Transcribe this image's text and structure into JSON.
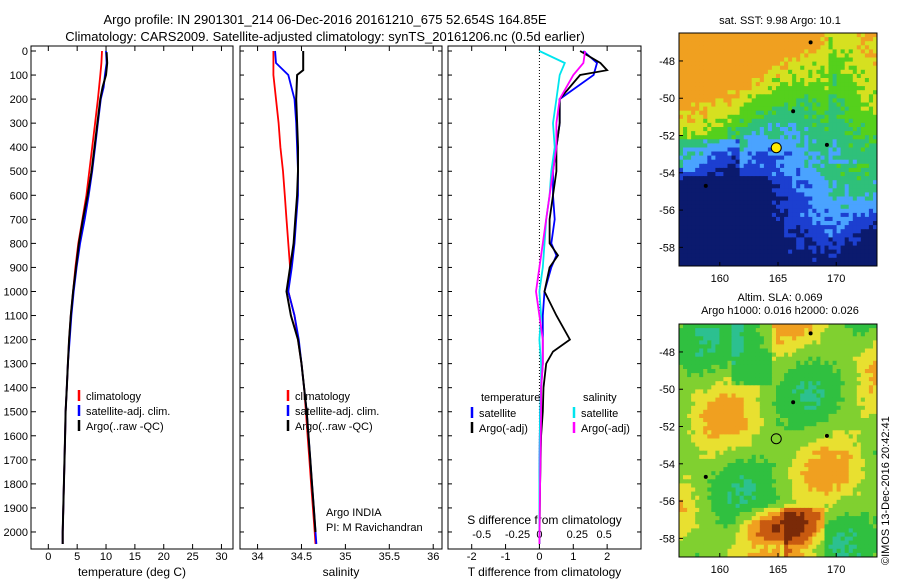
{
  "title": {
    "line1": "Argo profile: IN 2901301_214 06-Dec-2016 20161210_675 52.654S 164.85E",
    "line2": "Climatology: CARS2009. Satellite-adjusted climatology: synTS_20161206.nc (0.5d earlier)"
  },
  "credit": "©IMOS 13-Dec-2016 20:42:41",
  "colors": {
    "climatology": "#ff0000",
    "satellite": "#0000ff",
    "argo": "#000000",
    "salinity_satellite": "#00e5ee",
    "salinity_argo": "#ff00ff"
  },
  "chart_data": [
    {
      "type": "line",
      "xlabel": "temperature (deg C)",
      "ylabel": "",
      "xlim": [
        -3,
        32
      ],
      "ylim": [
        2100,
        0
      ],
      "xticks": [
        0,
        5,
        10,
        15,
        20,
        25,
        30
      ],
      "yticks": [
        0,
        100,
        200,
        300,
        400,
        500,
        600,
        700,
        800,
        900,
        1000,
        1100,
        1200,
        1300,
        1400,
        1500,
        1600,
        1700,
        1800,
        1900,
        2000
      ],
      "legend": [
        "climatology",
        "satellite-adj. clim.",
        "Argo(..raw -QC)"
      ],
      "series": [
        {
          "name": "climatology",
          "depth": [
            0,
            50,
            100,
            200,
            300,
            400,
            500,
            600,
            700,
            800,
            900,
            1000,
            1100,
            1200,
            1300,
            1400,
            1500,
            1600,
            1700,
            1800,
            1900,
            2000,
            2050
          ],
          "values": [
            9.3,
            9.2,
            9.0,
            8.6,
            8.1,
            7.6,
            7.1,
            6.6,
            5.9,
            5.2,
            4.7,
            4.3,
            3.9,
            3.6,
            3.4,
            3.2,
            3.0,
            2.9,
            2.8,
            2.7,
            2.6,
            2.5,
            2.5
          ]
        },
        {
          "name": "satellite-adj. clim.",
          "depth": [
            0,
            50,
            100,
            150,
            200,
            300,
            400,
            500,
            600,
            700,
            800,
            900,
            1000,
            1100,
            1200,
            1300,
            1400,
            1500,
            1600,
            1700,
            1800,
            1900,
            2000,
            2050
          ],
          "values": [
            10.0,
            10.1,
            9.8,
            9.6,
            9.1,
            8.6,
            8.1,
            7.6,
            7.0,
            6.3,
            5.5,
            4.9,
            4.4,
            4.0,
            3.7,
            3.4,
            3.2,
            3.0,
            2.9,
            2.8,
            2.7,
            2.6,
            2.5,
            2.5
          ]
        },
        {
          "name": "Argo(..raw -QC)",
          "depth": [
            5,
            50,
            100,
            150,
            200,
            300,
            400,
            500,
            600,
            700,
            800,
            900,
            1000,
            1100,
            1200,
            1300,
            1400,
            1500,
            1600,
            1700,
            1800,
            1900,
            2000,
            2050
          ],
          "values": [
            10.1,
            10.2,
            10.0,
            9.4,
            9.0,
            8.5,
            8.0,
            7.5,
            6.8,
            6.0,
            5.3,
            4.8,
            4.3,
            3.9,
            3.6,
            3.4,
            3.2,
            3.0,
            2.9,
            2.8,
            2.7,
            2.6,
            2.5,
            2.5
          ]
        }
      ]
    },
    {
      "type": "line",
      "xlabel": "salinity",
      "xlim": [
        33.8,
        36.1
      ],
      "ylim": [
        2100,
        0
      ],
      "xticks": [
        34,
        34.5,
        35,
        35.5,
        36
      ],
      "legend": [
        "climatology",
        "satellite-adj. clim.",
        "Argo(..raw -QC)"
      ],
      "annotation": [
        "Argo INDIA",
        "PI: M Ravichandran"
      ],
      "series": [
        {
          "name": "climatology",
          "depth": [
            0,
            100,
            200,
            300,
            400,
            500,
            600,
            700,
            800,
            900,
            1000,
            1100,
            1200,
            1300,
            1400,
            1500,
            1600,
            1700,
            1800,
            1900,
            2000,
            2050
          ],
          "values": [
            34.18,
            34.18,
            34.21,
            34.24,
            34.26,
            34.29,
            34.31,
            34.33,
            34.35,
            34.37,
            34.35,
            34.42,
            34.46,
            34.5,
            34.53,
            34.55,
            34.57,
            34.59,
            34.61,
            34.63,
            34.65,
            34.66
          ]
        },
        {
          "name": "satellite-adj. clim.",
          "depth": [
            0,
            50,
            100,
            200,
            300,
            400,
            500,
            600,
            700,
            800,
            900,
            1000,
            1100,
            1200,
            1300,
            1400,
            1500,
            1600,
            1700,
            1800,
            1900,
            2000,
            2050
          ],
          "values": [
            34.2,
            34.21,
            34.35,
            34.42,
            34.44,
            34.45,
            34.46,
            34.46,
            34.44,
            34.42,
            34.39,
            34.35,
            34.42,
            34.47,
            34.5,
            34.53,
            34.56,
            34.58,
            34.6,
            34.62,
            34.64,
            34.66,
            34.67
          ]
        },
        {
          "name": "Argo(..raw -QC)",
          "depth": [
            0,
            80,
            100,
            200,
            300,
            400,
            500,
            600,
            700,
            800,
            900,
            1000,
            1100,
            1200,
            1300,
            1400,
            1500,
            1600,
            1700,
            1800,
            1900,
            2000
          ],
          "values": [
            34.52,
            34.52,
            34.45,
            34.44,
            34.45,
            34.46,
            34.46,
            34.45,
            34.43,
            34.41,
            34.37,
            34.33,
            34.38,
            34.46,
            34.5,
            34.53,
            34.56,
            34.58,
            34.6,
            34.62,
            34.64,
            34.66
          ]
        }
      ]
    },
    {
      "type": "line",
      "xlabel": "T difference from climatology",
      "xlabel2": "S difference from climatology",
      "xlim": [
        -2.7,
        3.0
      ],
      "ylim": [
        2100,
        0
      ],
      "xticks": [
        -2,
        -1,
        0,
        1,
        2
      ],
      "xticks2": [
        "-0.5",
        "-0.25",
        "0",
        "0.25",
        "0.5"
      ],
      "legend_headers": [
        "temperature",
        "salinity"
      ],
      "legend": [
        "satellite",
        "Argo(-adj)",
        "satellite",
        "Argo(-adj)"
      ],
      "series": [
        {
          "name": "satellite",
          "depth": [
            0,
            50,
            100,
            200,
            300,
            400,
            500,
            600,
            700,
            800,
            850,
            900,
            1000,
            1100,
            1200,
            1300,
            1400,
            1500,
            1600,
            1800,
            2050
          ],
          "values": [
            1.3,
            1.7,
            1.6,
            0.6,
            0.6,
            0.5,
            0.4,
            0.4,
            0.45,
            0.35,
            0.5,
            0.35,
            0.15,
            0.1,
            0.1,
            0.1,
            0.05,
            0.02,
            0.01,
            0.0,
            0.0
          ]
        },
        {
          "name": "Argo(-adj)",
          "depth": [
            0,
            50,
            80,
            100,
            200,
            300,
            400,
            500,
            600,
            700,
            800,
            850,
            900,
            1000,
            1100,
            1200,
            1250,
            1300,
            1400,
            1500,
            1600,
            1800,
            2050
          ],
          "values": [
            1.2,
            1.8,
            2.0,
            1.2,
            0.6,
            0.6,
            0.5,
            0.5,
            0.4,
            0.3,
            0.3,
            0.55,
            0.3,
            0.15,
            0.5,
            0.9,
            0.4,
            0.2,
            0.12,
            0.1,
            0.05,
            0.02,
            0.0
          ]
        },
        {
          "name": "satellite",
          "depth": [
            0,
            50,
            100,
            200,
            300,
            400,
            500,
            600,
            700,
            800,
            900,
            1000,
            1100,
            1200,
            1300,
            1400,
            1500,
            1800,
            2050
          ],
          "values": [
            0.0,
            0.75,
            0.6,
            0.5,
            0.4,
            0.45,
            0.35,
            0.3,
            0.2,
            0.15,
            0.1,
            0.0,
            0.05,
            0.0,
            0.05,
            0.05,
            0.02,
            0.0,
            0.0
          ]
        },
        {
          "name": "Argo(-adj)",
          "depth": [
            0,
            50,
            100,
            200,
            300,
            400,
            500,
            600,
            700,
            800,
            900,
            1000,
            1100,
            1200,
            1300,
            1400,
            1500,
            1800,
            2050
          ],
          "values": [
            1.35,
            1.3,
            1.0,
            0.6,
            0.5,
            0.5,
            0.4,
            0.3,
            0.2,
            0.1,
            0.0,
            -0.1,
            0.0,
            0.1,
            0.1,
            0.05,
            0.05,
            0.02,
            0.0
          ]
        }
      ]
    },
    {
      "type": "heatmap",
      "title": "sat. SST: 9.98  Argo: 10.1",
      "xticks": [
        160,
        165,
        170
      ],
      "yticks": [
        -48,
        -50,
        -52,
        -54,
        -56,
        -58
      ],
      "xlim": [
        156.5,
        173.5
      ],
      "ylim": [
        -59,
        -46.5
      ],
      "marker": {
        "lon": 164.85,
        "lat": -52.654
      }
    },
    {
      "type": "heatmap",
      "title": "Altim. SLA: 0.069",
      "subtitle": "Argo h1000: 0.016  h2000: 0.026",
      "xticks": [
        160,
        165,
        170
      ],
      "yticks": [
        -48,
        -50,
        -52,
        -54,
        -56,
        -58
      ],
      "xlim": [
        156.5,
        173.5
      ],
      "ylim": [
        -59,
        -46.5
      ],
      "marker": {
        "lon": 164.85,
        "lat": -52.654
      }
    }
  ]
}
